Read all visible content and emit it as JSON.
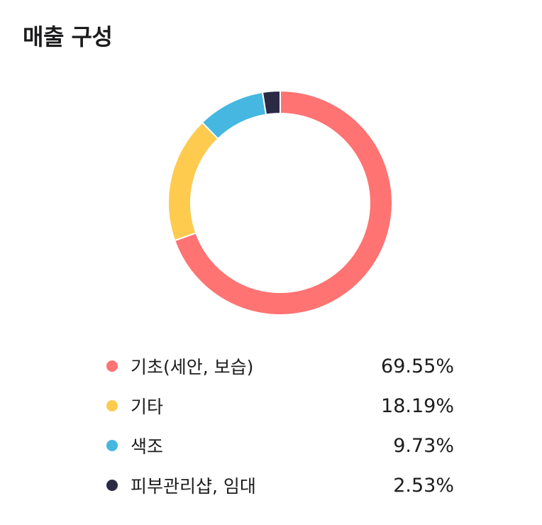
{
  "title": "매출 구성",
  "chart_data": {
    "type": "pie",
    "title": "매출 구성",
    "categories": [
      "기초(세안, 보습)",
      "기타",
      "색조",
      "피부관리샵, 임대"
    ],
    "values": [
      69.55,
      18.19,
      9.73,
      2.53
    ],
    "value_labels": [
      "69.55%",
      "18.19%",
      "9.73%",
      "2.53%"
    ],
    "unit": "%",
    "donut": true,
    "legend_position": "bottom",
    "colors": [
      "#FF7373",
      "#FECB4F",
      "#45B7E0",
      "#2B2A45"
    ]
  }
}
